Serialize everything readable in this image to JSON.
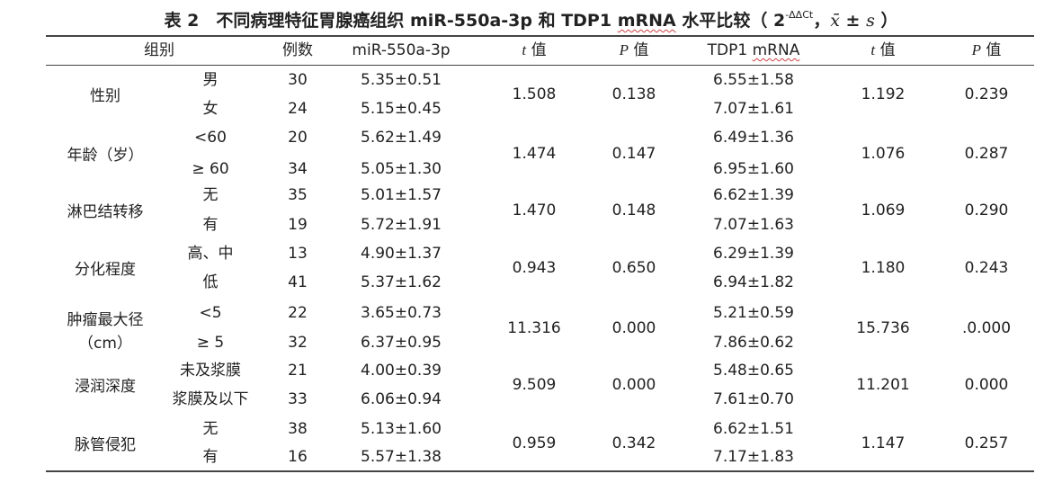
{
  "title": {
    "prefix": "表 2　不同病理特征胃腺癌组织 miR-550a-3p 和 TDP1 ",
    "mrna": "mRNA",
    "mid": " 水平比较（ 2",
    "sup": "-ΔΔCt",
    "sep": "，",
    "xbar": "x̄",
    "pm": " ± ",
    "s": "s",
    "close": " ）"
  },
  "header": {
    "group": "组别",
    "cases": "例数",
    "mir": "miR-550a-3p",
    "t1_it": "t",
    "t1_rest": " 值",
    "p1_it": "P",
    "p1_rest": " 值",
    "tdp1_prefix": "TDP1 ",
    "tdp1_mrna": "mRNA",
    "t2_it": "t",
    "t2_rest": " 值",
    "p2_it": "P",
    "p2_rest": " 值"
  },
  "groups": [
    {
      "name": "性别",
      "rows": [
        {
          "sub": "男",
          "n": "30",
          "mir": "5.35±0.51",
          "tdp": "6.55±1.58"
        },
        {
          "sub": "女",
          "n": "24",
          "mir": "5.15±0.45",
          "tdp": "7.07±1.61"
        }
      ],
      "t1": "1.508",
      "p1": "0.138",
      "t2": "1.192",
      "p2": "0.239"
    },
    {
      "name": "年龄（岁）",
      "rows": [
        {
          "sub": "<60",
          "n": "20",
          "mir": "5.62±1.49",
          "tdp": "6.49±1.36"
        },
        {
          "sub": "≥ 60",
          "n": "34",
          "mir": "5.05±1.30",
          "tdp": "6.95±1.60"
        }
      ],
      "t1": "1.474",
      "p1": "0.147",
      "t2": "1.076",
      "p2": "0.287"
    },
    {
      "name": "淋巴结转移",
      "rows": [
        {
          "sub": "无",
          "n": "35",
          "mir": "5.01±1.57",
          "tdp": "6.62±1.39"
        },
        {
          "sub": "有",
          "n": "19",
          "mir": "5.72±1.91",
          "tdp": "7.07±1.63"
        }
      ],
      "t1": "1.470",
      "p1": "0.148",
      "t2": "1.069",
      "p2": "0.290"
    },
    {
      "name": "分化程度",
      "rows": [
        {
          "sub": "高、中",
          "n": "13",
          "mir": "4.90±1.37",
          "tdp": "6.29±1.39"
        },
        {
          "sub": "低",
          "n": "41",
          "mir": "5.37±1.62",
          "tdp": "6.94±1.82"
        }
      ],
      "t1": "0.943",
      "p1": "0.650",
      "t2": "1.180",
      "p2": "0.243"
    },
    {
      "name": "肿瘤最大径",
      "name2": "（cm）",
      "rows": [
        {
          "sub": "<5",
          "n": "22",
          "mir": "3.65±0.73",
          "tdp": "5.21±0.59"
        },
        {
          "sub": "≥ 5",
          "n": "32",
          "mir": "6.37±0.95",
          "tdp": "7.86±0.62"
        }
      ],
      "t1": "11.316",
      "p1": "0.000",
      "t2": "15.736",
      "p2": ".0.000"
    },
    {
      "name": "浸润深度",
      "rows": [
        {
          "sub": "未及浆膜",
          "n": "21",
          "mir": "4.00±0.39",
          "tdp": "5.48±0.65"
        },
        {
          "sub": "浆膜及以下",
          "n": "33",
          "mir": "6.06±0.94",
          "tdp": "7.61±0.70"
        }
      ],
      "t1": "9.509",
      "p1": "0.000",
      "t2": "11.201",
      "p2": "0.000"
    },
    {
      "name": "脉管侵犯",
      "rows": [
        {
          "sub": "无",
          "n": "38",
          "mir": "5.13±1.60",
          "tdp": "6.62±1.51"
        },
        {
          "sub": "有",
          "n": "16",
          "mir": "5.57±1.38",
          "tdp": "7.17±1.83"
        }
      ],
      "t1": "0.959",
      "p1": "0.342",
      "t2": "1.147",
      "p2": "0.257"
    }
  ]
}
